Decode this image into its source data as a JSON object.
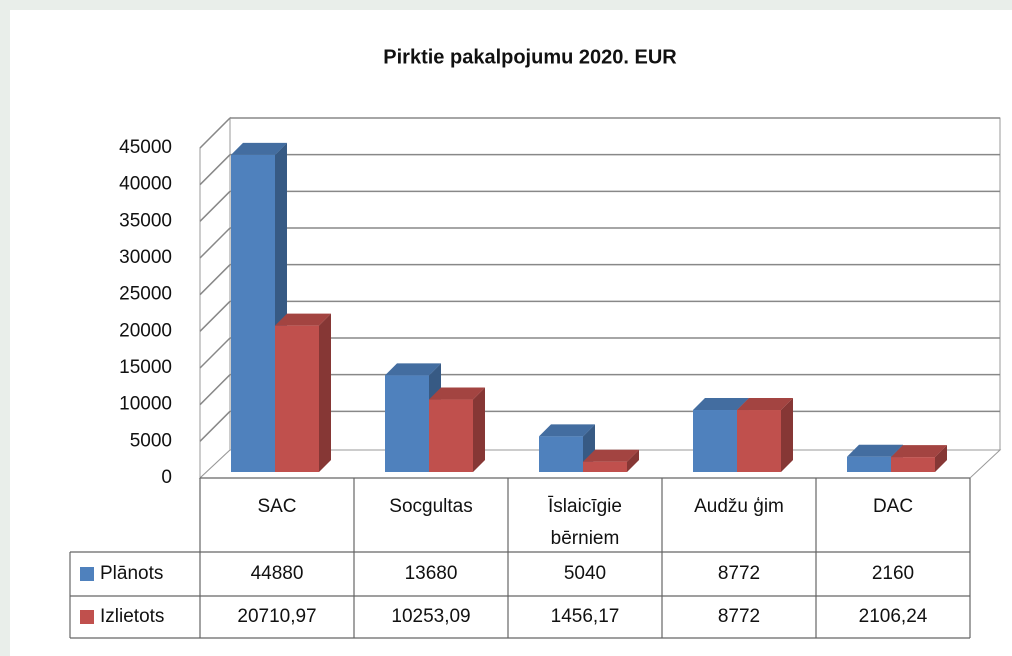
{
  "chart_data": {
    "type": "bar3d",
    "title": "Pirktie pakalpojumu 2020. EUR",
    "categories": [
      "SAC",
      "Socgultas",
      "Īslaicīgie bērniem",
      "Audžu ģim",
      "DAC"
    ],
    "series": [
      {
        "name": "Plānots",
        "color": "#4f81bd",
        "values": [
          44880,
          13680,
          5040,
          8772,
          2160
        ]
      },
      {
        "name": "Izlietots",
        "color": "#c0504d",
        "values": [
          20710.97,
          10253.09,
          1456.17,
          8772,
          2106.24
        ],
        "value_labels": [
          "20710,97",
          "10253,09",
          "1456,17",
          "8772",
          "2106,24"
        ]
      }
    ],
    "ylim": [
      0,
      45000
    ],
    "yticks": [
      0,
      5000,
      10000,
      15000,
      20000,
      25000,
      30000,
      35000,
      40000,
      45000
    ],
    "grid": true,
    "data_table": true
  }
}
